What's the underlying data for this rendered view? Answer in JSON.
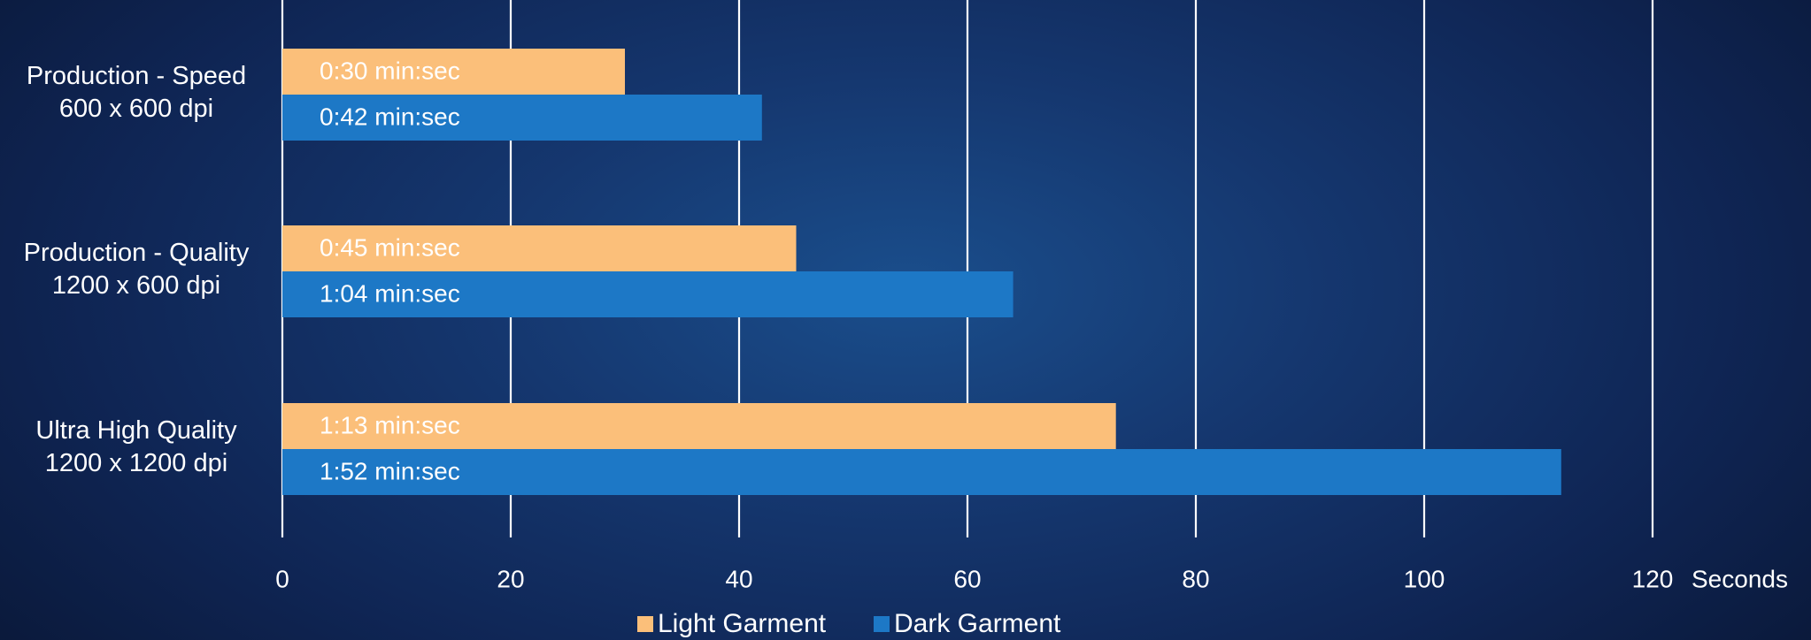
{
  "colors": {
    "light_garment": "#fbbf7a",
    "dark_garment": "#1d78c6",
    "gridline": "#ffffff",
    "text": "#ffffff"
  },
  "chart_data": {
    "type": "bar",
    "orientation": "horizontal",
    "categories": [
      [
        "Production - Speed",
        "600 x 600 dpi"
      ],
      [
        "Production - Quality",
        "1200 x 600 dpi"
      ],
      [
        "Ultra High Quality",
        "1200 x 1200 dpi"
      ]
    ],
    "series": [
      {
        "name": "Light Garment",
        "color": "#fbbf7a",
        "values": [
          30,
          45,
          73
        ],
        "labels": [
          "0:30 min:sec",
          "0:45 min:sec",
          "1:13 min:sec"
        ]
      },
      {
        "name": "Dark Garment",
        "color": "#1d78c6",
        "values": [
          42,
          64,
          112
        ],
        "labels": [
          "0:42 min:sec",
          "1:04 min:sec",
          "1:52 min:sec"
        ]
      }
    ],
    "x_axis": {
      "label": "Seconds",
      "range": [
        0,
        120
      ],
      "ticks": [
        0,
        20,
        40,
        60,
        80,
        100,
        120
      ]
    },
    "grid": true,
    "legend": "bottom"
  }
}
